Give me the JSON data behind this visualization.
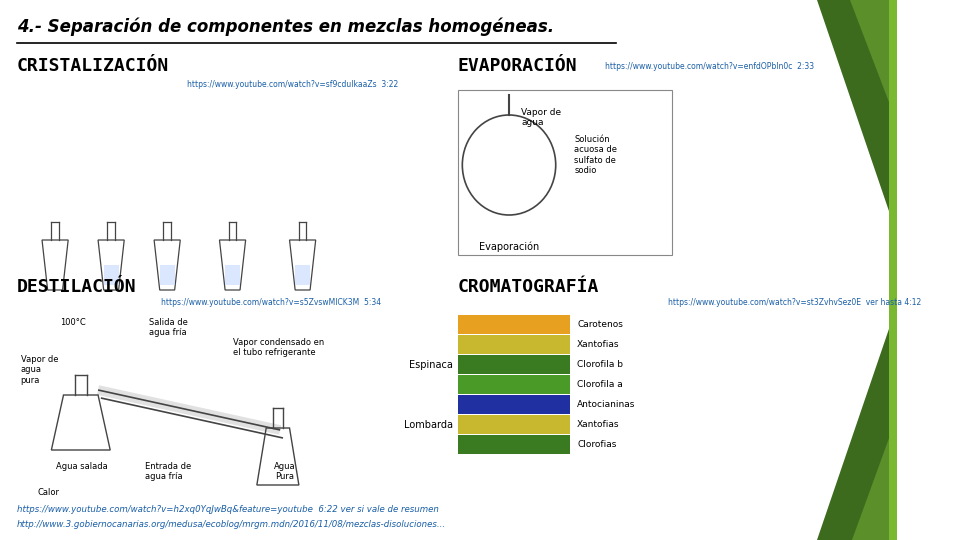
{
  "title": "4.- Separación de componentes en mezclas homogéneas.",
  "bg_color": "#ffffff",
  "green_dark": "#3d6b1e",
  "green_mid": "#5a8f2a",
  "green_light": "#7ab832",
  "section1_title": "CRISTALIZACIÓN",
  "section2_title": "EVAPORACIÓN",
  "section3_title": "DESTILACIÓN",
  "section4_title": "CROMATOGRAFÍA",
  "link_crista": "https://www.youtube.com/watch?v=sf9cdulkaaZs  3:22",
  "link_evapo": "https://www.youtube.com/watch?v=enfdOPbln0c  2:33",
  "link_desti": "https://www.youtube.com/watch?v=s5ZvswMICK3M  5:34",
  "link_croma": "https://www.youtube.com/watch?v=st3ZvhvSez0E  ver hasta 4:12",
  "bottom_link1": "https://www.youtube.com/watch?v=h2xq0YqJwBq&feature=youtube  6:22 ver si vale de resumen",
  "bottom_link2": "http://www.3.gobiernocanarias.org/medusa/ecoblog/mrgm.mdn/2016/11/08/mezclas-disoluciones...",
  "chrom_colors": [
    "#e8a020",
    "#c8b830",
    "#3a7a20",
    "#4a9a28",
    "#2030a0",
    "#c8b830",
    "#3a7a20"
  ],
  "chrom_labels": [
    "Carotenos",
    "Xantofias",
    "Clorofila b",
    "Clorofila a",
    "Antocianinas",
    "Xantofias",
    "Clorofias"
  ],
  "plant_labels": [
    "Espinaca",
    "Lombarda"
  ],
  "evap_labels": [
    "Vapor de\nagua",
    "Solución\nacuosa de\nsulfato de\nsodio",
    "Evaporación"
  ],
  "desti_labels": [
    "100°C",
    "Salida de\nagua fría",
    "Vapor de\nagua\npura",
    "Vapor condensado en\nel tubo refrigerante",
    "Agua salada",
    "Entrada de\nagua fría",
    "Agua\nPura",
    "Calor"
  ]
}
